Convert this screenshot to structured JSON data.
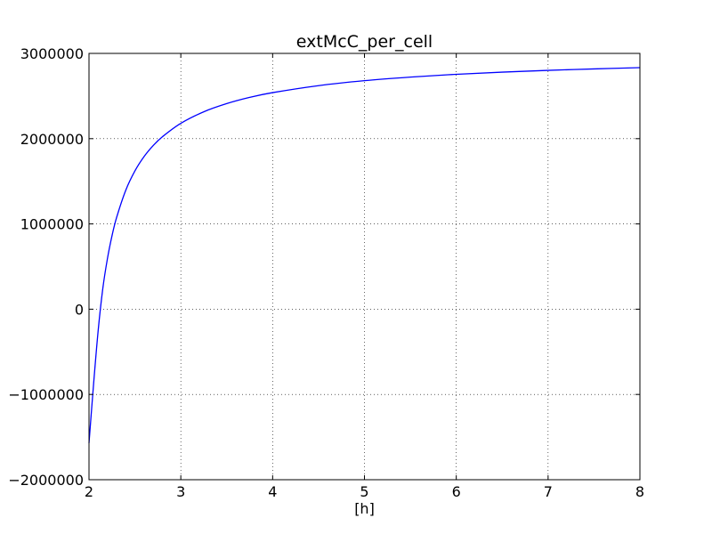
{
  "chart_data": {
    "type": "line",
    "title": "extMcC_per_cell",
    "xlabel": "[h]",
    "ylabel": "",
    "xlim": [
      2,
      8
    ],
    "ylim": [
      -2000000,
      3000000
    ],
    "x_ticks": [
      2,
      3,
      4,
      5,
      6,
      7,
      8
    ],
    "y_ticks": [
      -2000000,
      -1000000,
      0,
      1000000,
      2000000,
      3000000
    ],
    "grid": true,
    "line_color": "#0000ff",
    "series": [
      {
        "x": [
          2.0,
          2.05,
          2.1,
          2.15,
          2.2,
          2.25,
          2.3,
          2.4,
          2.5,
          2.6,
          2.7,
          2.8,
          3.0,
          3.25,
          3.5,
          3.75,
          4.0,
          4.5,
          5.0,
          5.5,
          6.0,
          6.5,
          7.0,
          7.5,
          8.0
        ],
        "values": [
          -1570000,
          -877000,
          -248000,
          239000,
          588000,
          858000,
          1073000,
          1394000,
          1621000,
          1790000,
          1920000,
          2023000,
          2180000,
          2315000,
          2411000,
          2484000,
          2540000,
          2622000,
          2680000,
          2722000,
          2755000,
          2780000,
          2801000,
          2818000,
          2833000
        ]
      }
    ]
  }
}
